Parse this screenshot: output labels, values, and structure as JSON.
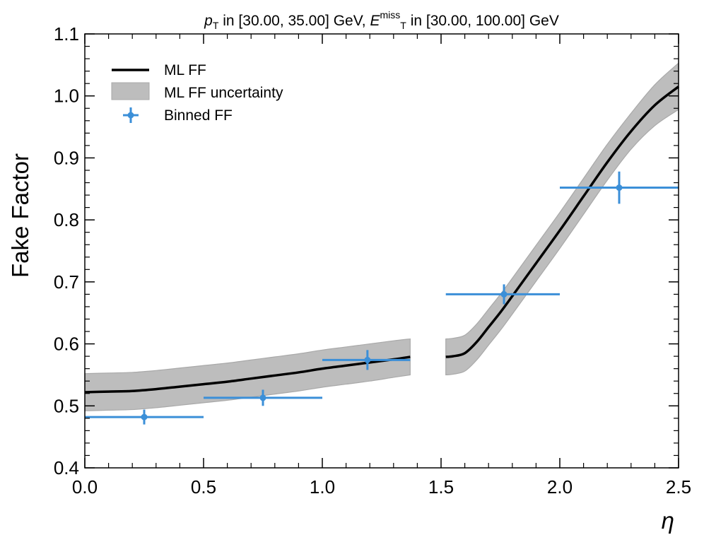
{
  "chart_data": {
    "type": "line",
    "title": {
      "pt_sym": "p",
      "pt_sub": "T",
      "pt_range": "in [30.00, 35.00] GeV,",
      "met_sym": "E",
      "met_sub": "T",
      "met_sup": "miss",
      "met_range": "in [30.00, 100.00] GeV"
    },
    "xlabel": "η",
    "ylabel": "Fake Factor",
    "xlim": [
      0.0,
      2.5
    ],
    "ylim": [
      0.4,
      1.1
    ],
    "xticks": [
      0.0,
      0.5,
      1.0,
      1.5,
      2.0,
      2.5
    ],
    "xtick_labels": [
      "0.0",
      "0.5",
      "1.0",
      "1.5",
      "2.0",
      "2.5"
    ],
    "yticks": [
      0.4,
      0.5,
      0.6,
      0.7,
      0.8,
      0.9,
      1.0,
      1.1
    ],
    "ytick_labels": [
      "0.4",
      "0.5",
      "0.6",
      "0.7",
      "0.8",
      "0.9",
      "1.0",
      "1.1"
    ],
    "legend": {
      "position": "top-left",
      "entries": [
        "ML FF",
        "ML FF uncertainty",
        "Binned FF"
      ]
    },
    "colors": {
      "ml_line": "#000000",
      "band_fill": "#bdbdbd",
      "band_edge": "#a9a9a9",
      "binned": "#3b8fd8"
    },
    "series": [
      {
        "name": "ML FF",
        "segments": [
          {
            "x": [
              0.0,
              0.1,
              0.2,
              0.3,
              0.4,
              0.5,
              0.6,
              0.7,
              0.8,
              0.9,
              1.0,
              1.1,
              1.2,
              1.3,
              1.37
            ],
            "y": [
              0.522,
              0.523,
              0.524,
              0.527,
              0.531,
              0.535,
              0.539,
              0.544,
              0.549,
              0.554,
              0.56,
              0.565,
              0.57,
              0.575,
              0.579
            ]
          },
          {
            "x": [
              1.52,
              1.55,
              1.6,
              1.65,
              1.7,
              1.75,
              1.8,
              1.9,
              2.0,
              2.1,
              2.2,
              2.3,
              2.4,
              2.5
            ],
            "y": [
              0.579,
              0.58,
              0.585,
              0.603,
              0.627,
              0.651,
              0.677,
              0.73,
              0.783,
              0.838,
              0.893,
              0.943,
              0.985,
              1.015
            ]
          }
        ]
      },
      {
        "name": "ML FF uncertainty",
        "segments": [
          {
            "x": [
              0.0,
              0.1,
              0.2,
              0.3,
              0.4,
              0.5,
              0.6,
              0.7,
              0.8,
              0.9,
              1.0,
              1.1,
              1.2,
              1.3,
              1.37
            ],
            "lower": [
              0.492,
              0.493,
              0.494,
              0.497,
              0.501,
              0.505,
              0.509,
              0.514,
              0.519,
              0.524,
              0.53,
              0.535,
              0.54,
              0.546,
              0.55
            ],
            "upper": [
              0.552,
              0.553,
              0.554,
              0.557,
              0.561,
              0.565,
              0.569,
              0.574,
              0.579,
              0.584,
              0.59,
              0.595,
              0.6,
              0.605,
              0.608
            ]
          },
          {
            "x": [
              1.52,
              1.55,
              1.6,
              1.65,
              1.7,
              1.75,
              1.8,
              1.9,
              2.0,
              2.1,
              2.2,
              2.3,
              2.4,
              2.5
            ],
            "lower": [
              0.55,
              0.551,
              0.556,
              0.574,
              0.598,
              0.622,
              0.648,
              0.701,
              0.754,
              0.809,
              0.864,
              0.914,
              0.952,
              0.978
            ],
            "upper": [
              0.608,
              0.609,
              0.614,
              0.632,
              0.656,
              0.68,
              0.706,
              0.759,
              0.812,
              0.867,
              0.922,
              0.972,
              1.018,
              1.053
            ]
          }
        ]
      },
      {
        "name": "Binned FF",
        "points": [
          {
            "x": 0.25,
            "xlo": 0.0,
            "xhi": 0.5,
            "y": 0.482,
            "yerr": 0.012
          },
          {
            "x": 0.75,
            "xlo": 0.5,
            "xhi": 1.0,
            "y": 0.513,
            "yerr": 0.013
          },
          {
            "x": 1.19,
            "xlo": 1.0,
            "xhi": 1.37,
            "y": 0.574,
            "yerr": 0.016
          },
          {
            "x": 1.765,
            "xlo": 1.52,
            "xhi": 2.0,
            "y": 0.68,
            "yerr": 0.016
          },
          {
            "x": 2.25,
            "xlo": 2.0,
            "xhi": 2.5,
            "y": 0.852,
            "yerr": 0.026
          }
        ]
      }
    ]
  }
}
